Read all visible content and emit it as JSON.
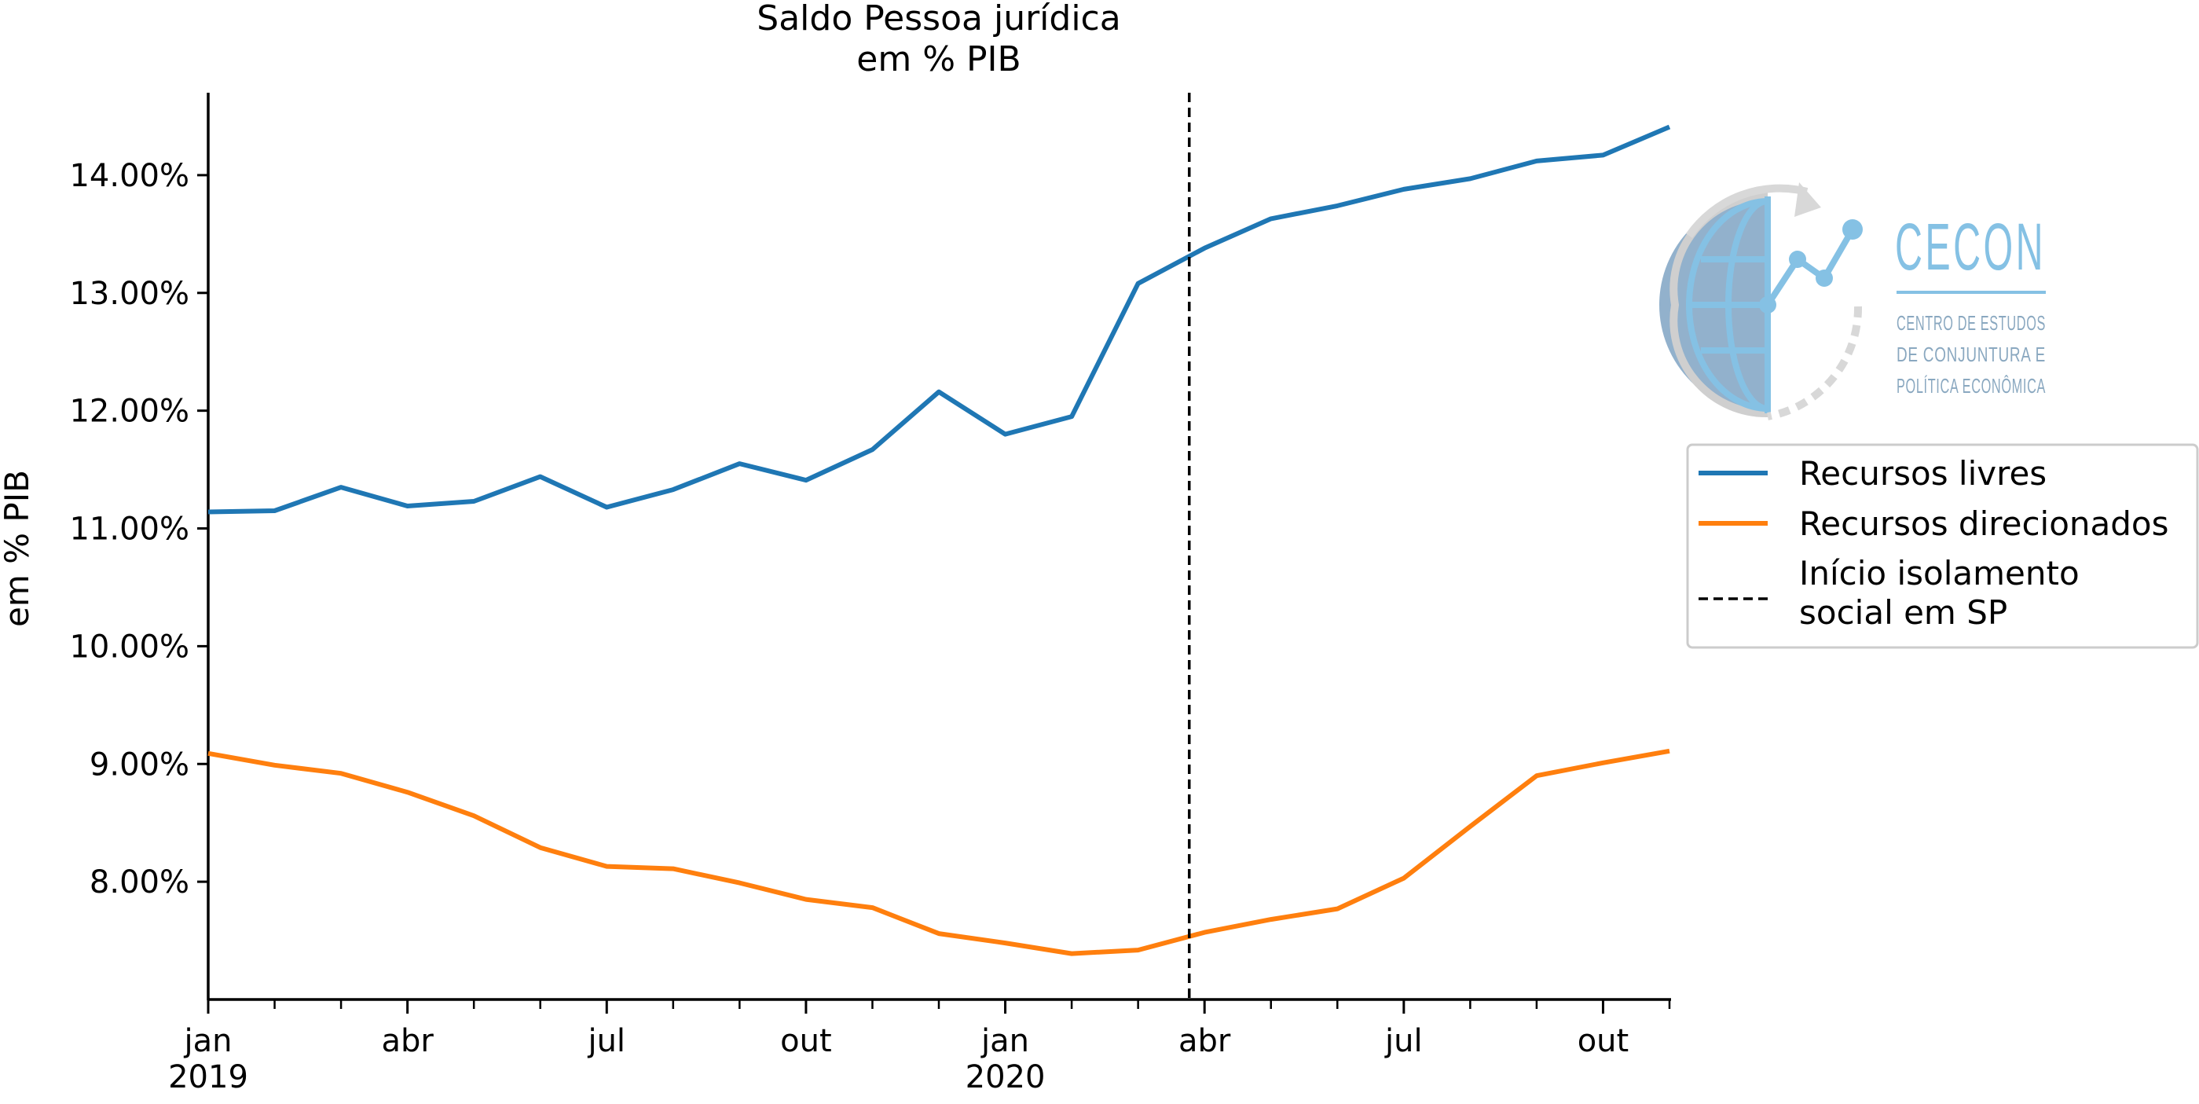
{
  "chart_data": {
    "type": "line",
    "title": "Saldo Pessoa jurídica",
    "subtitle": "em % PIB",
    "ylabel": "em % PIB",
    "xlabel": "",
    "x_start": "2019-01",
    "x_end": "2020-11",
    "x_tick_labels": [
      {
        "month": "2019-01",
        "label": "jan",
        "sublabel": "2019"
      },
      {
        "month": "2019-04",
        "label": "abr",
        "sublabel": ""
      },
      {
        "month": "2019-07",
        "label": "jul",
        "sublabel": ""
      },
      {
        "month": "2019-10",
        "label": "out",
        "sublabel": ""
      },
      {
        "month": "2020-01",
        "label": "jan",
        "sublabel": "2020"
      },
      {
        "month": "2020-04",
        "label": "abr",
        "sublabel": ""
      },
      {
        "month": "2020-07",
        "label": "jul",
        "sublabel": ""
      },
      {
        "month": "2020-10",
        "label": "out",
        "sublabel": ""
      }
    ],
    "ylim": [
      7.0,
      14.7
    ],
    "y_ticks": [
      8.0,
      9.0,
      10.0,
      11.0,
      12.0,
      13.0,
      14.0
    ],
    "y_tick_labels": [
      "8.00%",
      "9.00%",
      "10.00%",
      "11.00%",
      "12.00%",
      "13.00%",
      "14.00%"
    ],
    "months": [
      "2019-01",
      "2019-02",
      "2019-03",
      "2019-04",
      "2019-05",
      "2019-06",
      "2019-07",
      "2019-08",
      "2019-09",
      "2019-10",
      "2019-11",
      "2019-12",
      "2020-01",
      "2020-02",
      "2020-03",
      "2020-04",
      "2020-05",
      "2020-06",
      "2020-07",
      "2020-08",
      "2020-09",
      "2020-10",
      "2020-11"
    ],
    "series": [
      {
        "name": "Recursos livres",
        "color": "#1f77b4",
        "values": [
          11.14,
          11.15,
          11.35,
          11.19,
          11.23,
          11.44,
          11.18,
          11.33,
          11.55,
          11.41,
          11.67,
          12.16,
          11.8,
          11.95,
          13.08,
          13.38,
          13.63,
          13.74,
          13.88,
          13.97,
          14.12,
          14.17,
          14.41
        ]
      },
      {
        "name": "Recursos direcionados",
        "color": "#ff7f0e",
        "values": [
          9.09,
          8.99,
          8.92,
          8.76,
          8.56,
          8.29,
          8.13,
          8.11,
          7.99,
          7.85,
          7.78,
          7.56,
          7.48,
          7.39,
          7.42,
          7.57,
          7.68,
          7.77,
          8.03,
          8.47,
          8.9,
          9.01,
          9.11
        ]
      }
    ],
    "vline": {
      "month": "2020-03",
      "day_fraction": 0.77,
      "label": "Início isolamento social em SP",
      "label_lines": [
        "Início isolamento",
        "social em SP"
      ],
      "style": "dashed",
      "color": "#000000"
    },
    "legend_position": "right",
    "grid": false
  },
  "logo": {
    "name": "CECON",
    "lines": [
      "CENTRO DE ESTUDOS",
      "DE CONJUNTURA E",
      "POLÍTICA ECONÔMICA"
    ],
    "color": "#85c1e4",
    "globe_color": "#7fa3c3"
  }
}
